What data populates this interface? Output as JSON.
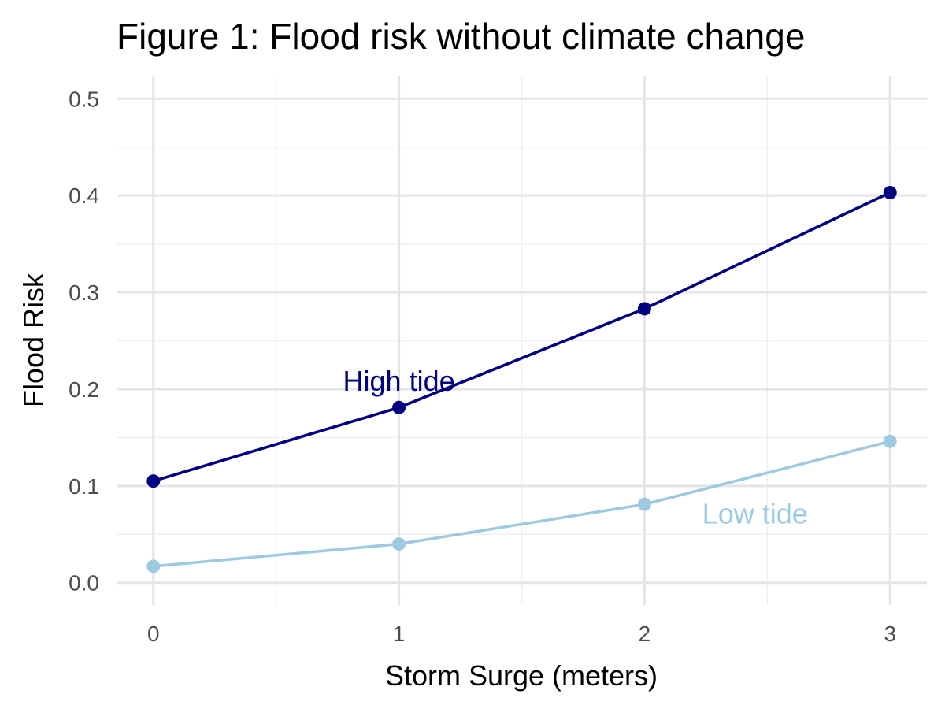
{
  "chart_data": {
    "type": "line",
    "title": "Figure 1: Flood risk without climate change",
    "xlabel": "Storm Surge (meters)",
    "ylabel": "Flood Risk",
    "x": [
      0,
      1,
      2,
      3
    ],
    "xlim": [
      -0.15,
      3.15
    ],
    "ylim": [
      -0.023,
      0.523
    ],
    "x_ticks": [
      "0",
      "1",
      "2",
      "3"
    ],
    "y_ticks": [
      "0.0",
      "0.1",
      "0.2",
      "0.3",
      "0.4",
      "0.5"
    ],
    "grid": true,
    "legend": "none",
    "series": [
      {
        "name": "High tide",
        "color": "#000080",
        "values": [
          0.105,
          0.181,
          0.283,
          0.403
        ]
      },
      {
        "name": "Low tide",
        "color": "#9ecae1",
        "values": [
          0.017,
          0.04,
          0.081,
          0.146
        ]
      }
    ]
  }
}
